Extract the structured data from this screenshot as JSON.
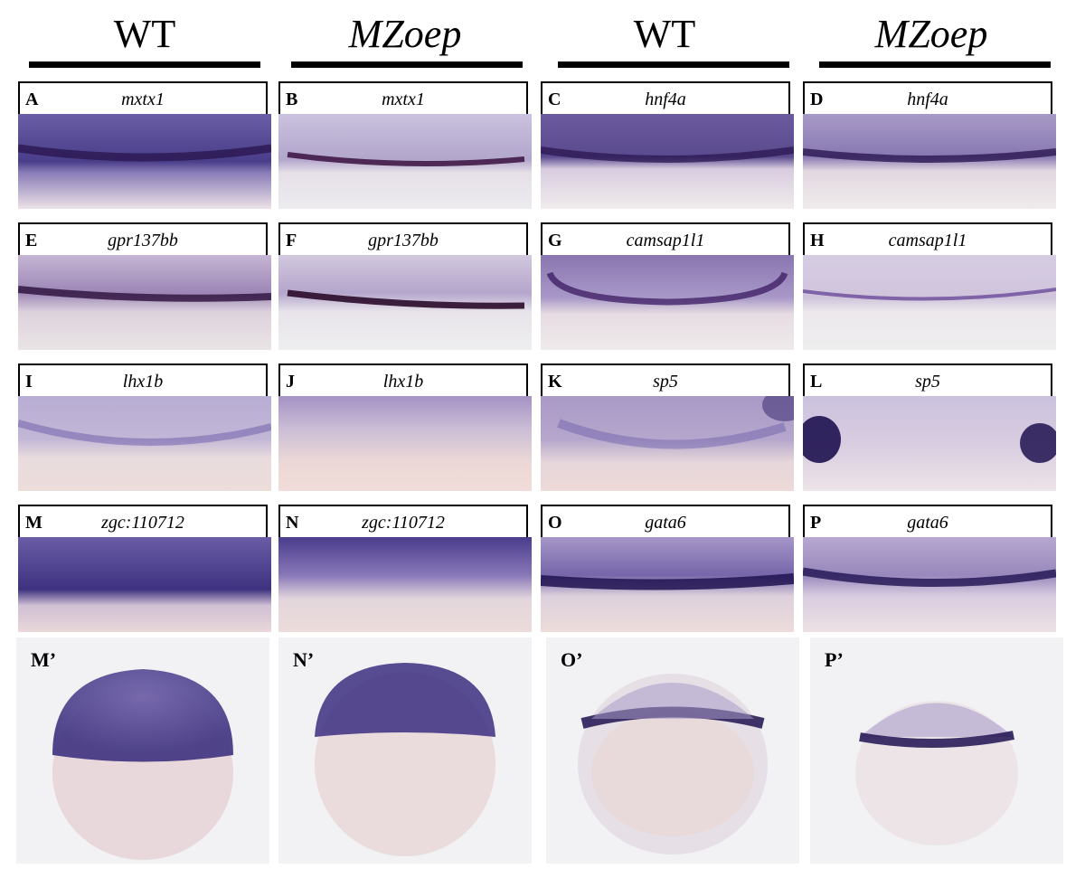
{
  "columns": [
    {
      "header": "WT"
    },
    {
      "header": "MZoep"
    },
    {
      "header": "WT"
    },
    {
      "header": "MZoep"
    }
  ],
  "panels": [
    {
      "letter": "A",
      "gene": "mxtx1"
    },
    {
      "letter": "B",
      "gene": "mxtx1"
    },
    {
      "letter": "C",
      "gene": "hnf4a"
    },
    {
      "letter": "D",
      "gene": "hnf4a"
    },
    {
      "letter": "E",
      "gene": "gpr137bb"
    },
    {
      "letter": "F",
      "gene": "gpr137bb"
    },
    {
      "letter": "G",
      "gene": "camsap1l1"
    },
    {
      "letter": "H",
      "gene": "camsap1l1"
    },
    {
      "letter": "I",
      "gene": "lhx1b"
    },
    {
      "letter": "J",
      "gene": "lhx1b"
    },
    {
      "letter": "K",
      "gene": "sp5"
    },
    {
      "letter": "L",
      "gene": "sp5"
    },
    {
      "letter": "M",
      "gene": "zgc:110712"
    },
    {
      "letter": "N",
      "gene": "zgc:110712"
    },
    {
      "letter": "O",
      "gene": "gata6"
    },
    {
      "letter": "P",
      "gene": "gata6"
    }
  ],
  "bottom_panels": [
    {
      "letter": "M’"
    },
    {
      "letter": "N’"
    },
    {
      "letter": "O’"
    },
    {
      "letter": "P’"
    }
  ],
  "colors": {
    "stain_dark": "#2a1650",
    "stain_mid": "#5b4a9a",
    "stain_light": "#b8aed4",
    "yolk": "#e8dcdc",
    "background": "#f2f1f4"
  }
}
